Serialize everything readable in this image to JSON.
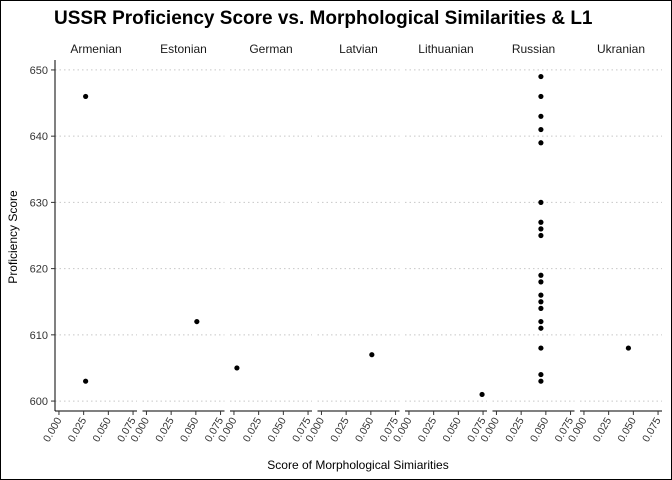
{
  "chart_data": {
    "type": "scatter",
    "title": "USSR Proficiency Score vs. Morphological Similarities & L1",
    "xlabel": "Score of Morphological Simiarities",
    "ylabel": "Proficiency Score",
    "xlim": [
      -0.004,
      0.079
    ],
    "ylim": [
      598.5,
      651.5
    ],
    "x_ticks": [
      0.0,
      0.025,
      0.05,
      0.075
    ],
    "x_tick_labels": [
      "0.000",
      "0.025",
      "0.050",
      "0.075"
    ],
    "y_ticks": [
      600,
      610,
      620,
      630,
      640,
      650
    ],
    "y_tick_labels": [
      "600",
      "610",
      "620",
      "630",
      "640",
      "650"
    ],
    "grid": "horizontal dotted",
    "point_color": "#000000",
    "facets": [
      {
        "label": "Armenian",
        "points": [
          {
            "x": 0.027,
            "y": 646
          },
          {
            "x": 0.027,
            "y": 603
          }
        ]
      },
      {
        "label": "Estonian",
        "points": [
          {
            "x": 0.051,
            "y": 612
          }
        ]
      },
      {
        "label": "German",
        "points": [
          {
            "x": 0.003,
            "y": 605
          }
        ]
      },
      {
        "label": "Latvian",
        "points": [
          {
            "x": 0.051,
            "y": 607
          }
        ]
      },
      {
        "label": "Lithuanian",
        "points": [
          {
            "x": 0.074,
            "y": 601
          }
        ]
      },
      {
        "label": "Russian",
        "points": [
          {
            "x": 0.045,
            "y": 649
          },
          {
            "x": 0.045,
            "y": 646
          },
          {
            "x": 0.045,
            "y": 643
          },
          {
            "x": 0.045,
            "y": 641
          },
          {
            "x": 0.045,
            "y": 639
          },
          {
            "x": 0.045,
            "y": 630
          },
          {
            "x": 0.045,
            "y": 627
          },
          {
            "x": 0.045,
            "y": 626
          },
          {
            "x": 0.045,
            "y": 625
          },
          {
            "x": 0.045,
            "y": 619
          },
          {
            "x": 0.045,
            "y": 618
          },
          {
            "x": 0.045,
            "y": 616
          },
          {
            "x": 0.045,
            "y": 615
          },
          {
            "x": 0.045,
            "y": 614
          },
          {
            "x": 0.045,
            "y": 612
          },
          {
            "x": 0.045,
            "y": 611
          },
          {
            "x": 0.045,
            "y": 608
          },
          {
            "x": 0.045,
            "y": 604
          },
          {
            "x": 0.045,
            "y": 603
          }
        ]
      },
      {
        "label": "Ukranian",
        "points": [
          {
            "x": 0.045,
            "y": 608
          }
        ]
      }
    ]
  }
}
